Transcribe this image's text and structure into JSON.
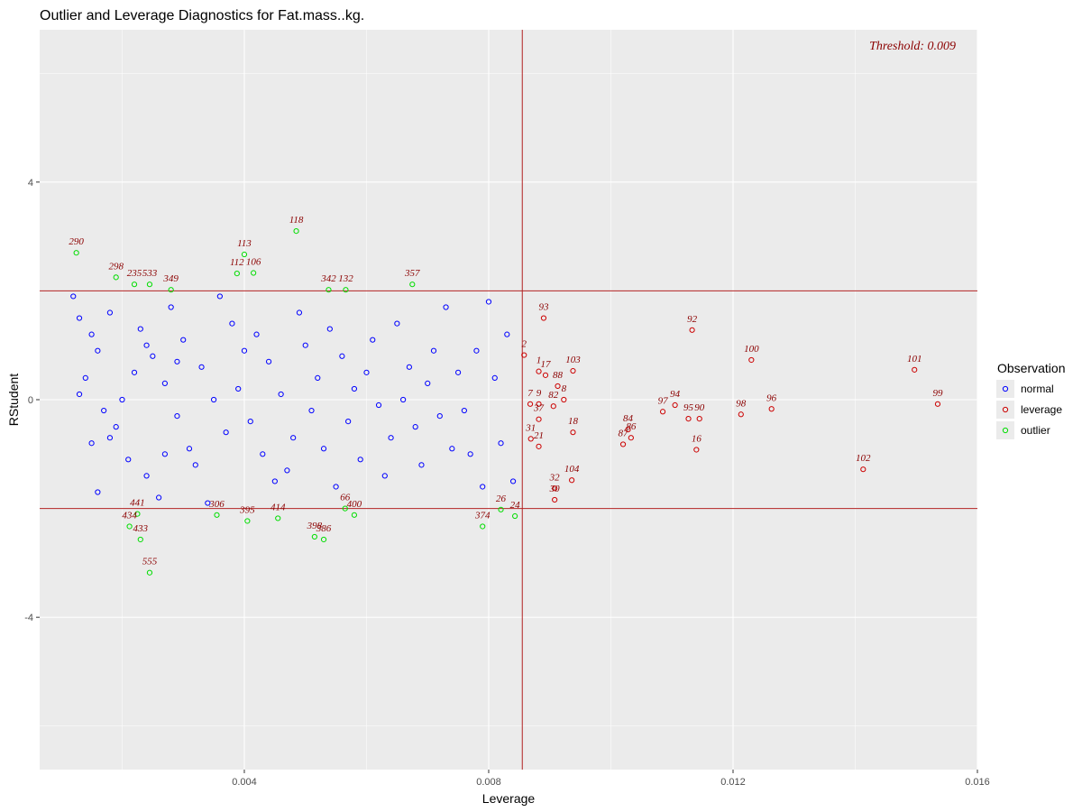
{
  "chart_data": {
    "type": "scatter",
    "title": "Outlier and Leverage Diagnostics for Fat.mass..kg.",
    "xlabel": "Leverage",
    "ylabel": "RStudent",
    "xlim": [
      0.00065,
      0.016
    ],
    "ylim": [
      -6.8,
      6.8
    ],
    "x_ticks": [
      0.004,
      0.008,
      0.012,
      0.016
    ],
    "x_tick_labels": [
      "0.004",
      "0.008",
      "0.012",
      "0.016"
    ],
    "y_ticks": [
      -4,
      0,
      4
    ],
    "y_tick_labels": [
      "-4",
      "0",
      "4"
    ],
    "grid": true,
    "threshold_text": "Threshold: 0.009",
    "leverage_threshold": 0.00855,
    "rstudent_bounds": [
      -2,
      2
    ],
    "legend": {
      "title": "Observation",
      "position": "right",
      "entries": [
        {
          "label": "normal",
          "color": "#0000ff"
        },
        {
          "label": "leverage",
          "color": "#cc0000"
        },
        {
          "label": "outlier",
          "color": "#00dd00"
        }
      ]
    },
    "series": [
      {
        "name": "normal",
        "color": "#0000ff",
        "points": [
          [
            0.0012,
            1.9
          ],
          [
            0.0013,
            1.5
          ],
          [
            0.0015,
            1.2
          ],
          [
            0.0018,
            1.6
          ],
          [
            0.0016,
            0.9
          ],
          [
            0.0014,
            0.4
          ],
          [
            0.0013,
            0.1
          ],
          [
            0.0017,
            -0.2
          ],
          [
            0.0019,
            -0.5
          ],
          [
            0.0015,
            -0.8
          ],
          [
            0.0021,
            -1.1
          ],
          [
            0.0016,
            -1.7
          ],
          [
            0.0023,
            1.3
          ],
          [
            0.0025,
            0.8
          ],
          [
            0.0027,
            0.3
          ],
          [
            0.0029,
            -0.3
          ],
          [
            0.0031,
            -0.9
          ],
          [
            0.0024,
            -1.4
          ],
          [
            0.0026,
            -1.8
          ],
          [
            0.0028,
            1.7
          ],
          [
            0.003,
            1.1
          ],
          [
            0.0033,
            0.6
          ],
          [
            0.0035,
            0.0
          ],
          [
            0.0037,
            -0.6
          ],
          [
            0.0032,
            -1.2
          ],
          [
            0.0034,
            -1.9
          ],
          [
            0.0036,
            1.9
          ],
          [
            0.0038,
            1.4
          ],
          [
            0.004,
            0.9
          ],
          [
            0.0039,
            0.2
          ],
          [
            0.0041,
            -0.4
          ],
          [
            0.0043,
            -1.0
          ],
          [
            0.0045,
            -1.5
          ],
          [
            0.0042,
            1.2
          ],
          [
            0.0044,
            0.7
          ],
          [
            0.0046,
            0.1
          ],
          [
            0.0048,
            -0.7
          ],
          [
            0.0047,
            -1.3
          ],
          [
            0.0049,
            1.6
          ],
          [
            0.005,
            1.0
          ],
          [
            0.0052,
            0.4
          ],
          [
            0.0051,
            -0.2
          ],
          [
            0.0053,
            -0.9
          ],
          [
            0.0055,
            -1.6
          ],
          [
            0.0054,
            1.3
          ],
          [
            0.0056,
            0.8
          ],
          [
            0.0058,
            0.2
          ],
          [
            0.0057,
            -0.4
          ],
          [
            0.0059,
            -1.1
          ],
          [
            0.0061,
            1.1
          ],
          [
            0.006,
            0.5
          ],
          [
            0.0062,
            -0.1
          ],
          [
            0.0064,
            -0.7
          ],
          [
            0.0063,
            -1.4
          ],
          [
            0.0065,
            1.4
          ],
          [
            0.0067,
            0.6
          ],
          [
            0.0066,
            0.0
          ],
          [
            0.0068,
            -0.5
          ],
          [
            0.0069,
            -1.2
          ],
          [
            0.0071,
            0.9
          ],
          [
            0.007,
            0.3
          ],
          [
            0.0072,
            -0.3
          ],
          [
            0.0073,
            1.7
          ],
          [
            0.0074,
            -0.9
          ],
          [
            0.0075,
            0.5
          ],
          [
            0.0076,
            -0.2
          ],
          [
            0.0077,
            -1.0
          ],
          [
            0.0078,
            0.9
          ],
          [
            0.0079,
            -1.6
          ],
          [
            0.008,
            1.8
          ],
          [
            0.0081,
            0.4
          ],
          [
            0.0082,
            -0.8
          ],
          [
            0.0083,
            1.2
          ],
          [
            0.0084,
            -1.5
          ],
          [
            0.0022,
            0.5
          ],
          [
            0.002,
            0.0
          ],
          [
            0.0018,
            -0.7
          ],
          [
            0.0024,
            1.0
          ],
          [
            0.0027,
            -1.0
          ],
          [
            0.0029,
            0.7
          ]
        ]
      },
      {
        "name": "leverage",
        "color": "#cc0000",
        "points": [
          {
            "label": "93",
            "x": 0.0089,
            "y": 1.5
          },
          {
            "label": "2",
            "x": 0.00858,
            "y": 0.82
          },
          {
            "label": "1",
            "x": 0.00882,
            "y": 0.52
          },
          {
            "label": "17",
            "x": 0.00893,
            "y": 0.45
          },
          {
            "label": "103",
            "x": 0.00938,
            "y": 0.53
          },
          {
            "label": "88",
            "x": 0.00913,
            "y": 0.25
          },
          {
            "label": "8",
            "x": 0.00923,
            "y": 0.0
          },
          {
            "label": "7",
            "x": 0.00868,
            "y": -0.08
          },
          {
            "label": "9",
            "x": 0.00882,
            "y": -0.08
          },
          {
            "label": "82",
            "x": 0.00906,
            "y": -0.12
          },
          {
            "label": "37",
            "x": 0.00882,
            "y": -0.36
          },
          {
            "label": "18",
            "x": 0.00938,
            "y": -0.6
          },
          {
            "label": "31",
            "x": 0.00869,
            "y": -0.72
          },
          {
            "label": "21",
            "x": 0.00882,
            "y": -0.86
          },
          {
            "label": "32",
            "x": 0.00908,
            "y": -1.63
          },
          {
            "label": "104",
            "x": 0.00936,
            "y": -1.48
          },
          {
            "label": "30",
            "x": 0.00908,
            "y": -1.84
          },
          {
            "label": "92",
            "x": 0.01133,
            "y": 1.28
          },
          {
            "label": "100",
            "x": 0.0123,
            "y": 0.73
          },
          {
            "label": "101",
            "x": 0.01497,
            "y": 0.55
          },
          {
            "label": "99",
            "x": 0.01535,
            "y": -0.08
          },
          {
            "label": "97",
            "x": 0.01085,
            "y": -0.22
          },
          {
            "label": "94",
            "x": 0.01105,
            "y": -0.1
          },
          {
            "label": "95",
            "x": 0.01127,
            "y": -0.35
          },
          {
            "label": "90",
            "x": 0.01145,
            "y": -0.35
          },
          {
            "label": "98",
            "x": 0.01213,
            "y": -0.27
          },
          {
            "label": "96",
            "x": 0.01263,
            "y": -0.17
          },
          {
            "label": "84",
            "x": 0.01028,
            "y": -0.55
          },
          {
            "label": "86",
            "x": 0.01033,
            "y": -0.7
          },
          {
            "label": "87",
            "x": 0.0102,
            "y": -0.82
          },
          {
            "label": "16",
            "x": 0.0114,
            "y": -0.92
          },
          {
            "label": "102",
            "x": 0.01413,
            "y": -1.28
          }
        ]
      },
      {
        "name": "outlier",
        "color": "#00dd00",
        "points": [
          {
            "label": "290",
            "x": 0.00125,
            "y": 2.7
          },
          {
            "label": "298",
            "x": 0.0019,
            "y": 2.25
          },
          {
            "label": "235",
            "x": 0.0022,
            "y": 2.12
          },
          {
            "label": "533",
            "x": 0.00245,
            "y": 2.12
          },
          {
            "label": "349",
            "x": 0.0028,
            "y": 2.02
          },
          {
            "label": "112",
            "x": 0.00388,
            "y": 2.32
          },
          {
            "label": "113",
            "x": 0.004,
            "y": 2.67
          },
          {
            "label": "106",
            "x": 0.00415,
            "y": 2.33
          },
          {
            "label": "118",
            "x": 0.00485,
            "y": 3.1
          },
          {
            "label": "342",
            "x": 0.00538,
            "y": 2.02
          },
          {
            "label": "132",
            "x": 0.00566,
            "y": 2.02
          },
          {
            "label": "357",
            "x": 0.00675,
            "y": 2.12
          },
          {
            "label": "441",
            "x": 0.00225,
            "y": -2.1
          },
          {
            "label": "434",
            "x": 0.00212,
            "y": -2.33
          },
          {
            "label": "433",
            "x": 0.0023,
            "y": -2.57
          },
          {
            "label": "555",
            "x": 0.00245,
            "y": -3.18
          },
          {
            "label": "306",
            "x": 0.00355,
            "y": -2.12
          },
          {
            "label": "395",
            "x": 0.00405,
            "y": -2.23
          },
          {
            "label": "414",
            "x": 0.00455,
            "y": -2.18
          },
          {
            "label": "398",
            "x": 0.00515,
            "y": -2.52
          },
          {
            "label": "386",
            "x": 0.0053,
            "y": -2.57
          },
          {
            "label": "66",
            "x": 0.00565,
            "y": -2.0
          },
          {
            "label": "400",
            "x": 0.0058,
            "y": -2.12
          },
          {
            "label": "374",
            "x": 0.0079,
            "y": -2.33
          },
          {
            "label": "26",
            "x": 0.0082,
            "y": -2.02
          },
          {
            "label": "24",
            "x": 0.00843,
            "y": -2.14
          }
        ]
      }
    ]
  }
}
